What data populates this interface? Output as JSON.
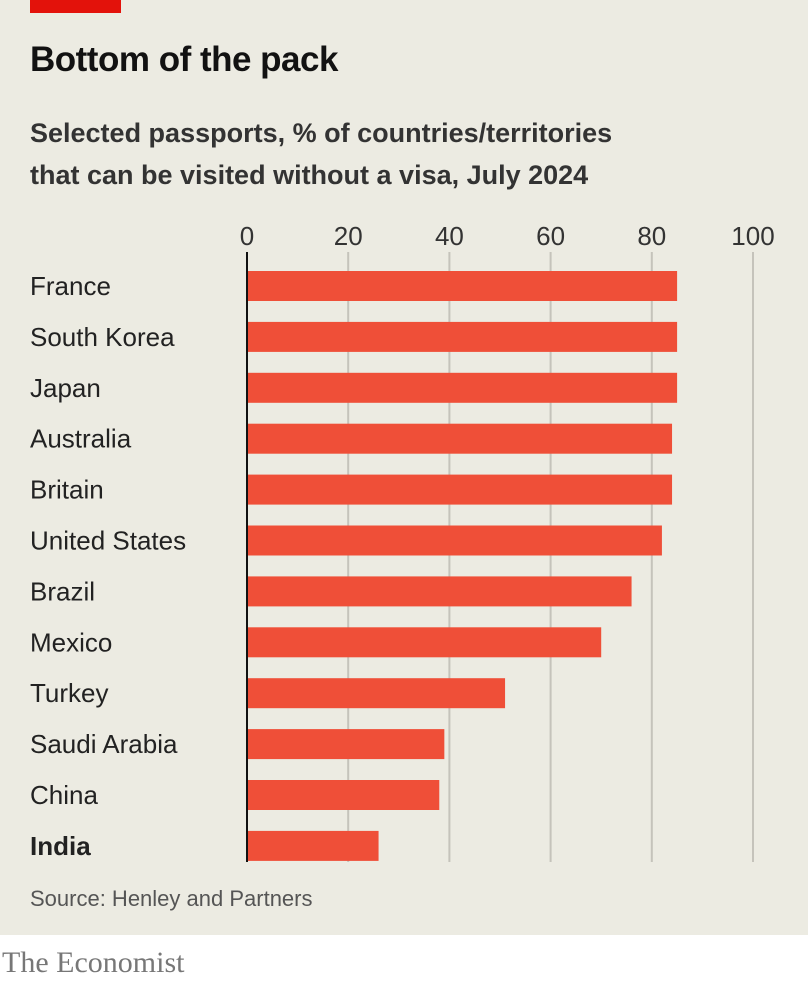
{
  "header": {
    "title": "Bottom of the pack",
    "subtitle_line1": "Selected passports, % of countries/territories",
    "subtitle_line2": "that can be visited without a visa, July 2024"
  },
  "footer": {
    "source": "Source: Henley and Partners",
    "brand": "The Economist"
  },
  "colors": {
    "bar": "#ef4f38",
    "accent": "#e3120b",
    "grid": "#c5c3bb",
    "axis": "#121212"
  },
  "chart_data": {
    "type": "bar",
    "orientation": "horizontal",
    "title": "Bottom of the pack",
    "subtitle": "Selected passports, % of countries/territories that can be visited without a visa, July 2024",
    "categories": [
      "France",
      "South Korea",
      "Japan",
      "Australia",
      "Britain",
      "United States",
      "Brazil",
      "Mexico",
      "Turkey",
      "Saudi Arabia",
      "China",
      "India"
    ],
    "values": [
      85,
      85,
      85,
      84,
      84,
      82,
      76,
      70,
      51,
      39,
      38,
      26
    ],
    "highlight": "India",
    "xlim": [
      0,
      100
    ],
    "xticks": [
      "0",
      "20",
      "40",
      "60",
      "80",
      "100"
    ],
    "grid": true
  }
}
